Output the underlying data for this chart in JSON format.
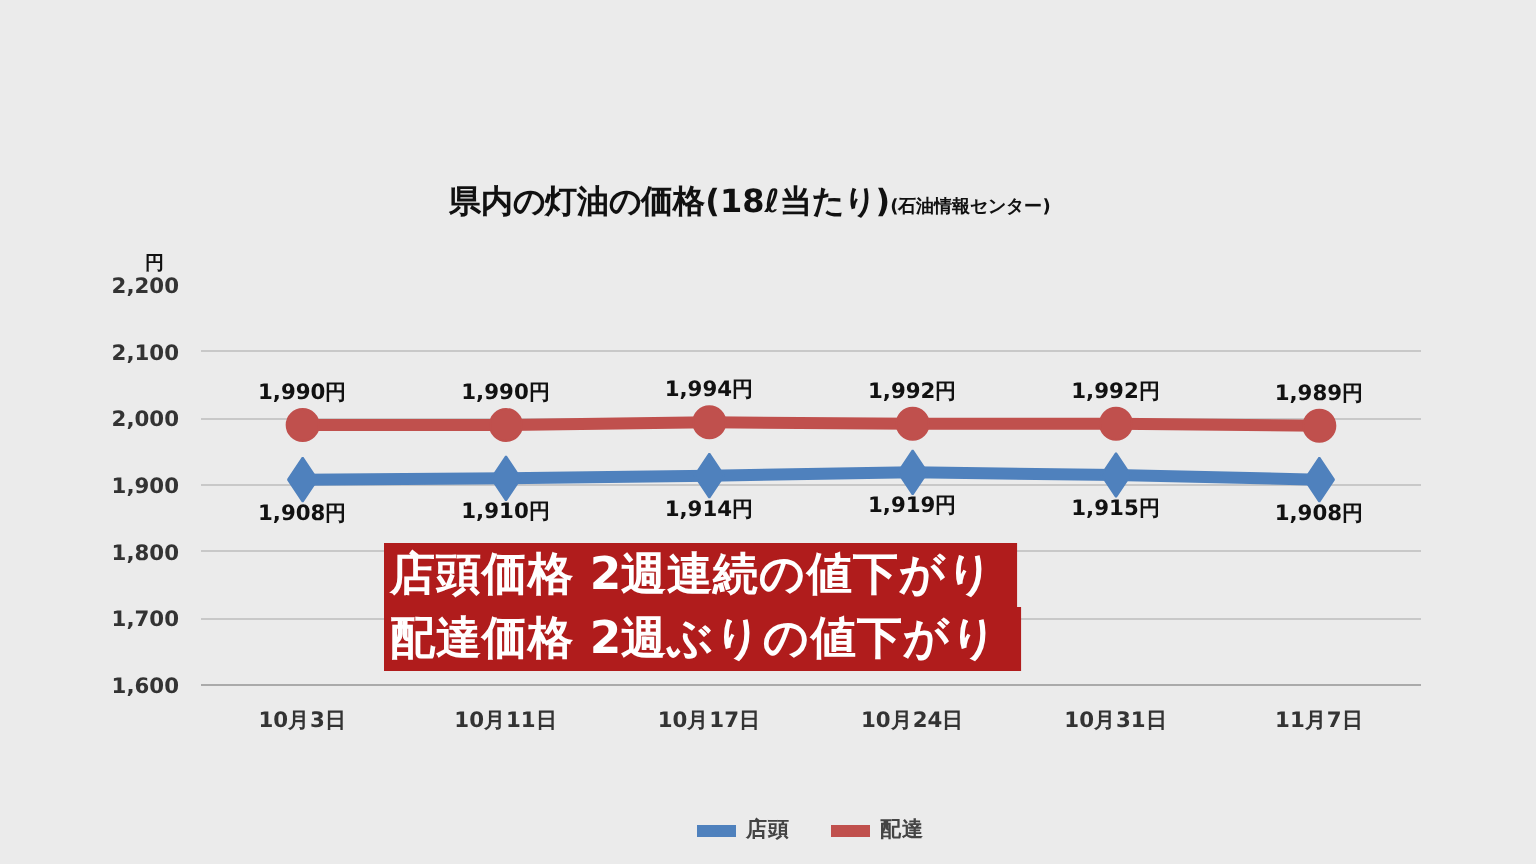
{
  "chart_data": {
    "type": "line",
    "title": "県内の灯油の価格(18ℓ当たり)",
    "ylabel": "円",
    "annotations": [
      "(石油情報センター)",
      "店頭価格  2週連続の値下がり",
      "配達価格  2週ぶりの値下がり"
    ],
    "categories": [
      "10月3日",
      "10月11日",
      "10月17日",
      "10月24日",
      "10月31日",
      "11月7日"
    ],
    "series": [
      {
        "name": "店頭",
        "color": "#4f81bd",
        "marker": "diamond",
        "values": [
          1908,
          1910,
          1914,
          1919,
          1915,
          1908
        ],
        "value_labels": [
          "1,908円",
          "1,910円",
          "1,914円",
          "1,919円",
          "1,915円",
          "1,908円"
        ]
      },
      {
        "name": "配達",
        "color": "#c0504d",
        "marker": "circle",
        "values": [
          1990,
          1990,
          1994,
          1992,
          1992,
          1989
        ],
        "value_labels": [
          "1,990円",
          "1,990円",
          "1,994円",
          "1,992円",
          "1,992円",
          "1,989円"
        ]
      }
    ],
    "ylim": [
      1600,
      2200
    ],
    "yticks": [
      {
        "value": 1600,
        "label": "1,600"
      },
      {
        "value": 1700,
        "label": "1,700"
      },
      {
        "value": 1800,
        "label": "1,800"
      },
      {
        "value": 1900,
        "label": "1,900"
      },
      {
        "value": 2000,
        "label": "2,000"
      },
      {
        "value": 2100,
        "label": "2,100"
      },
      {
        "value": 2200,
        "label": "2,200"
      }
    ],
    "grid": "y",
    "legend": "bottom"
  }
}
